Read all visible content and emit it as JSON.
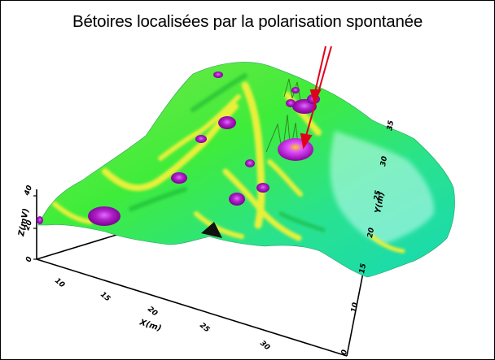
{
  "figure": {
    "caption": "Bétoires localisées par la polarisation spontanée",
    "colors": {
      "surface_low": "#19e4a8",
      "surface_mid": "#3cec3c",
      "surface_high": "#e8f23a",
      "anomaly": "#b01fc8",
      "anomaly_core": "#7a0090",
      "arrow": "#e0001b",
      "axis": "#000000"
    },
    "axes": {
      "x_label": "X(m)",
      "x_ticks": [
        "10",
        "15",
        "20",
        "25",
        "30"
      ],
      "y_label": "Y(m)",
      "y_ticks": [
        "10",
        "15",
        "20",
        "25",
        "30",
        "35"
      ],
      "z_label": "Z(mV)",
      "z_ticks": [
        "0",
        "20",
        "40"
      ]
    },
    "arrows": [
      "arrow-to-upper-betoire",
      "arrow-to-lower-betoire"
    ]
  }
}
